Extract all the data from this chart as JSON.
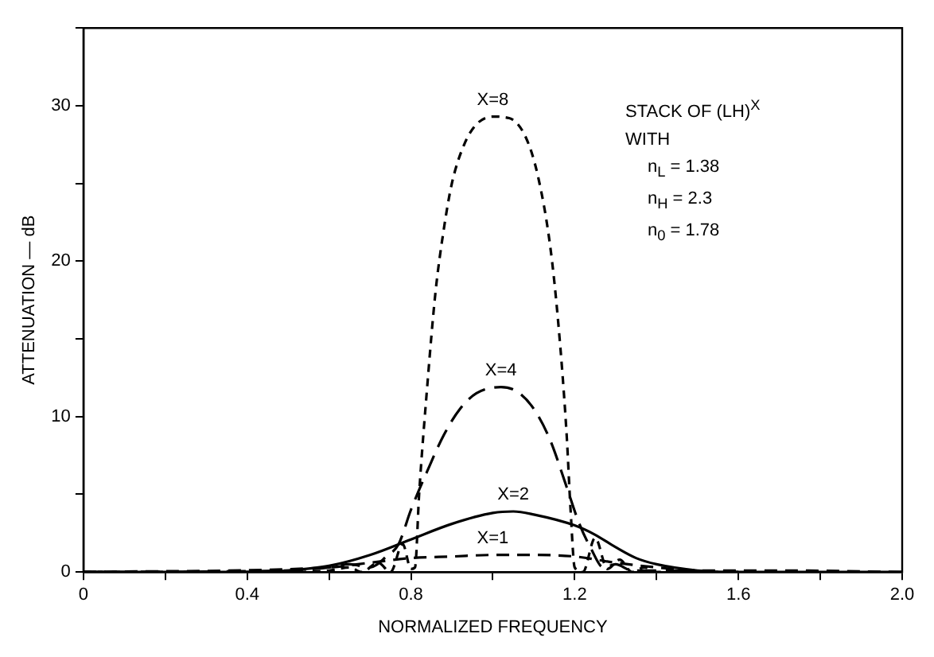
{
  "chart_data": {
    "type": "line",
    "xlabel": "NORMALIZED FREQUENCY",
    "ylabel": "ATTENUATION — dB",
    "annotations": [
      "STACK OF (LH)$^{X}$",
      "WITH",
      "n$_{L}$ = 1.38",
      "n$_{H}$ = 2.3",
      "n$_{0}$ = 1.78"
    ],
    "xlim": [
      0,
      2
    ],
    "ylim": [
      0,
      35
    ],
    "xticks": [
      0,
      {
        "value": 0.2,
        "label": null
      },
      0.4,
      {
        "value": 0.6,
        "label": null
      },
      0.8,
      {
        "value": 1.0,
        "label": null
      },
      1.2,
      {
        "value": 1.4,
        "label": null
      },
      1.6,
      {
        "value": 1.8,
        "label": null
      },
      {
        "value": 2,
        "label": "2.0"
      }
    ],
    "yticks": [
      0,
      {
        "value": 5,
        "label": null
      },
      10,
      {
        "value": 15,
        "label": null
      },
      20,
      {
        "value": 25,
        "label": null
      },
      30,
      {
        "value": 35,
        "label": null
      }
    ],
    "grid": false,
    "legend": false,
    "marker": "none",
    "series": [
      {
        "name": "X=8",
        "color": "#000000",
        "line_style": "dashed",
        "x": [
          0,
          0.5,
          0.6,
          0.65,
          0.68,
          0.72,
          0.75,
          0.78,
          0.8,
          0.81,
          0.82,
          0.84,
          0.86,
          0.88,
          0.9,
          0.93,
          0.96,
          1.0,
          1.04,
          1.08,
          1.11,
          1.14,
          1.16,
          1.18,
          1.19,
          1.2,
          1.22,
          1.25,
          1.28,
          1.31,
          1.34,
          1.37,
          1.4,
          1.6
        ],
        "values": [
          0,
          0,
          0.1,
          0.3,
          0,
          0.6,
          0,
          1.8,
          0.2,
          0.3,
          5,
          12,
          18,
          22,
          25,
          27.5,
          28.8,
          29.3,
          29.2,
          28,
          25.5,
          21,
          16,
          9,
          4,
          0.3,
          0,
          2.2,
          0.2,
          0.8,
          0,
          0.3,
          0,
          0
        ]
      },
      {
        "name": "X=4",
        "color": "#000000",
        "line_style": "dashed",
        "x": [
          0,
          0.5,
          0.6,
          0.65,
          0.7,
          0.74,
          0.77,
          0.8,
          0.84,
          0.88,
          0.92,
          0.96,
          1.02,
          1.06,
          1.1,
          1.14,
          1.18,
          1.21,
          1.24,
          1.27,
          1.3,
          1.34,
          1.4,
          1.6
        ],
        "values": [
          0,
          0.1,
          0.3,
          0.5,
          0.3,
          1,
          1.8,
          4,
          6.5,
          8.8,
          10.5,
          11.5,
          11.9,
          11.6,
          10.5,
          8.5,
          5.5,
          3.2,
          1.5,
          0.3,
          0.5,
          0.1,
          0.1,
          0
        ]
      },
      {
        "name": "X=2",
        "color": "#000000",
        "line_style": "solid",
        "x": [
          0,
          0.4,
          0.5,
          0.6,
          0.7,
          0.8,
          0.9,
          1.0,
          1.05,
          1.1,
          1.2,
          1.25,
          1.3,
          1.35,
          1.4,
          1.5,
          1.6,
          2.0
        ],
        "values": [
          0,
          0,
          0.1,
          0.4,
          1.1,
          2.1,
          3.1,
          3.8,
          3.9,
          3.7,
          3.0,
          2.4,
          1.6,
          0.9,
          0.5,
          0.1,
          0,
          0
        ]
      },
      {
        "name": "X=1",
        "color": "#000000",
        "line_style": "dashed",
        "x": [
          0,
          0.6,
          0.7,
          0.8,
          0.9,
          1.0,
          1.1,
          1.2,
          1.3,
          1.4,
          1.5,
          1.7,
          2.0
        ],
        "values": [
          0,
          0.3,
          0.6,
          0.9,
          1.0,
          1.1,
          1.1,
          1.0,
          0.6,
          0.3,
          0.1,
          0.1,
          0
        ]
      }
    ]
  }
}
